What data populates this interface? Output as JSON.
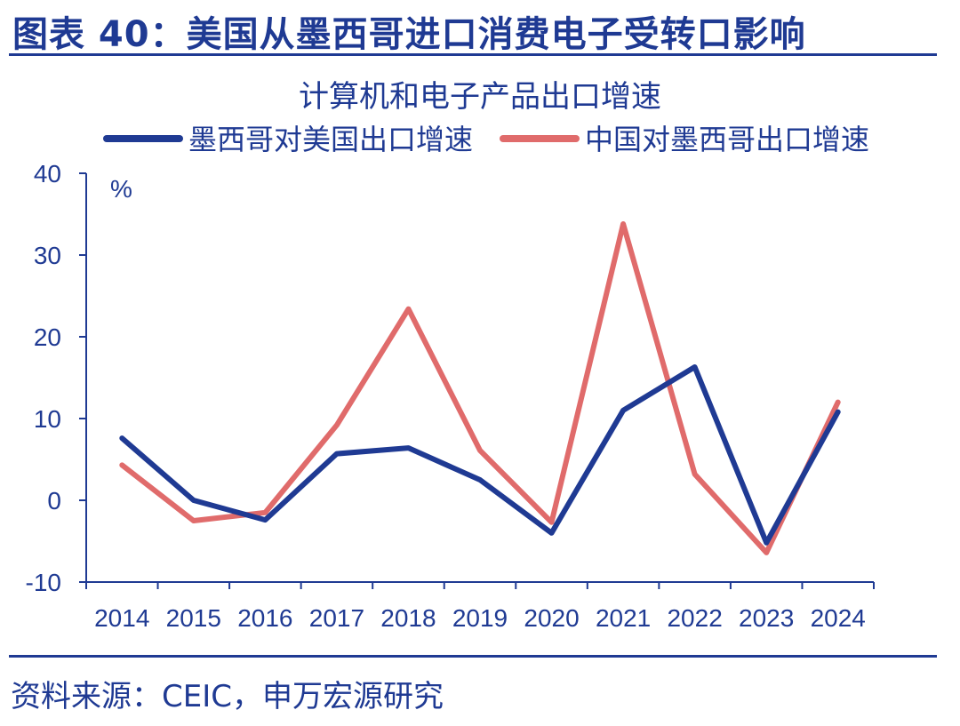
{
  "header": {
    "title": "图表 40：美国从墨西哥进口消费电子受转口影响"
  },
  "footer": {
    "source": "资料来源：CEIC，申万宏源研究"
  },
  "chart_data": {
    "type": "line",
    "title": "计算机和电子产品出口增速",
    "ylabel": "%",
    "xlabel": "",
    "categories": [
      "2014",
      "2015",
      "2016",
      "2017",
      "2018",
      "2019",
      "2020",
      "2021",
      "2022",
      "2023",
      "2024"
    ],
    "ylim": [
      -10,
      40
    ],
    "yticks": [
      -10,
      0,
      10,
      20,
      30,
      40
    ],
    "legend_position": "top",
    "grid": false,
    "series": [
      {
        "name": "墨西哥对美国出口增速",
        "color": "#1f3a93",
        "values": [
          7.6,
          0.0,
          -2.4,
          5.7,
          6.4,
          2.5,
          -4.0,
          11.0,
          16.3,
          -5.2,
          10.8
        ]
      },
      {
        "name": "中国对墨西哥出口增速",
        "color": "#e06b6b",
        "values": [
          4.3,
          -2.5,
          -1.5,
          9.2,
          23.4,
          6.1,
          -2.7,
          33.8,
          3.2,
          -6.4,
          12.0
        ]
      }
    ]
  }
}
